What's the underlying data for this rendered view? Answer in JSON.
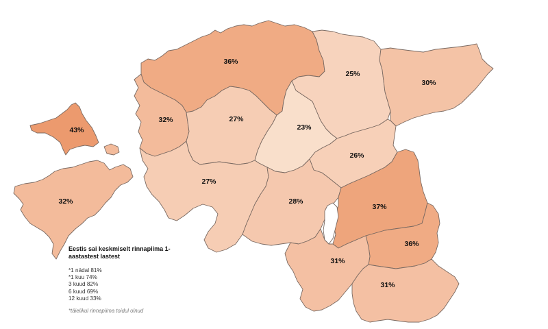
{
  "map": {
    "country": "Estonia",
    "colors": {
      "c43": "#EC9A6E",
      "c37": "#EEA57C",
      "c36": "#F0AB84",
      "c32": "#F3BB9B",
      "c31": "#F4C0A3",
      "c30": "#F4C3A6",
      "c28": "#F5C8AE",
      "c27": "#F6CDB4",
      "c26": "#F7D0B8",
      "c25": "#F7D3BD",
      "c23": "#F9DFCB",
      "border": "#7a6a62"
    },
    "regions": [
      {
        "name": "Hiiumaa",
        "value": "43%"
      },
      {
        "name": "Harjumaa",
        "value": "36%"
      },
      {
        "name": "Lääne-Virumaa",
        "value": "25%"
      },
      {
        "name": "Ida-Virumaa",
        "value": "30%"
      },
      {
        "name": "Läänemaa",
        "value": "32%"
      },
      {
        "name": "Raplamaa",
        "value": "27%"
      },
      {
        "name": "Järvamaa",
        "value": "23%"
      },
      {
        "name": "Jõgevamaa",
        "value": "26%"
      },
      {
        "name": "Saaremaa",
        "value": "32%"
      },
      {
        "name": "Pärnumaa",
        "value": "27%"
      },
      {
        "name": "Viljandimaa",
        "value": "28%"
      },
      {
        "name": "Tartumaa",
        "value": "37%"
      },
      {
        "name": "Põlvamaa",
        "value": "36%"
      },
      {
        "name": "Valgamaa",
        "value": "31%"
      },
      {
        "name": "Võrumaa",
        "value": "31%"
      }
    ]
  },
  "legend": {
    "title": "Eestis sai keskmiselt rinnapiima 1-aastastest lastest",
    "items": [
      "*1 nädal 81%",
      "*1 kuu 74%",
      "3 kuud 82%",
      "6 kuud 69%",
      "12 kuud 33%"
    ],
    "note": "*täielikul rinnapiima toidul olnud"
  }
}
